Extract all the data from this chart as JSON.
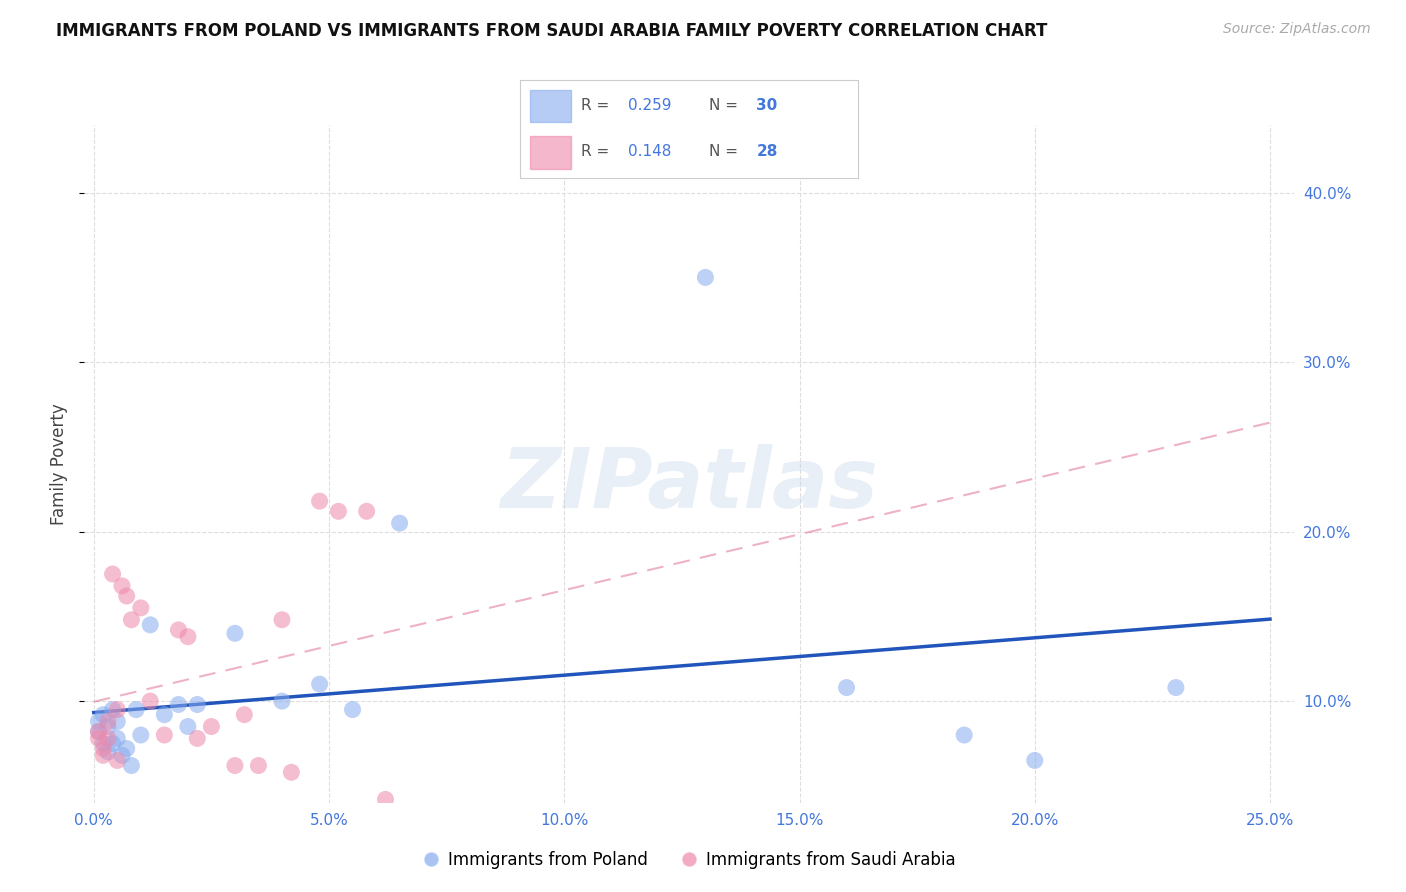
{
  "title": "IMMIGRANTS FROM POLAND VS IMMIGRANTS FROM SAUDI ARABIA FAMILY POVERTY CORRELATION CHART",
  "source": "Source: ZipAtlas.com",
  "ylabel": "Family Poverty",
  "legend_label1": "Immigrants from Poland",
  "legend_label2": "Immigrants from Saudi Arabia",
  "R1": "0.259",
  "N1": "30",
  "R2": "0.148",
  "N2": "28",
  "xlim": [
    -0.002,
    0.255
  ],
  "ylim": [
    0.04,
    0.44
  ],
  "xticks": [
    0.0,
    0.05,
    0.1,
    0.15,
    0.2,
    0.25
  ],
  "yticks": [
    0.1,
    0.2,
    0.3,
    0.4
  ],
  "color_poland": "#88AAEE",
  "color_saudi": "#EE88AA",
  "color_poland_line": "#2255BB",
  "color_saudi_line": "#DD6688",
  "poland_x": [
    0.001,
    0.001,
    0.002,
    0.002,
    0.003,
    0.003,
    0.004,
    0.004,
    0.005,
    0.005,
    0.006,
    0.007,
    0.008,
    0.009,
    0.01,
    0.012,
    0.015,
    0.018,
    0.02,
    0.022,
    0.03,
    0.04,
    0.048,
    0.055,
    0.065,
    0.13,
    0.16,
    0.185,
    0.2,
    0.23
  ],
  "poland_y": [
    0.082,
    0.088,
    0.075,
    0.092,
    0.085,
    0.07,
    0.095,
    0.075,
    0.088,
    0.078,
    0.068,
    0.072,
    0.062,
    0.095,
    0.08,
    0.145,
    0.092,
    0.098,
    0.085,
    0.098,
    0.14,
    0.1,
    0.11,
    0.095,
    0.205,
    0.35,
    0.108,
    0.08,
    0.065,
    0.108
  ],
  "saudi_x": [
    0.001,
    0.001,
    0.002,
    0.002,
    0.003,
    0.003,
    0.004,
    0.005,
    0.005,
    0.006,
    0.007,
    0.008,
    0.01,
    0.012,
    0.015,
    0.018,
    0.02,
    0.022,
    0.025,
    0.03,
    0.032,
    0.035,
    0.04,
    0.042,
    0.048,
    0.052,
    0.058,
    0.062
  ],
  "saudi_y": [
    0.078,
    0.082,
    0.068,
    0.072,
    0.088,
    0.078,
    0.175,
    0.095,
    0.065,
    0.168,
    0.162,
    0.148,
    0.155,
    0.1,
    0.08,
    0.142,
    0.138,
    0.078,
    0.085,
    0.062,
    0.092,
    0.062,
    0.148,
    0.058,
    0.218,
    0.212,
    0.212,
    0.042
  ],
  "watermark": "ZIPatlas",
  "background_color": "#FFFFFF",
  "grid_color": "#DDDDDD"
}
